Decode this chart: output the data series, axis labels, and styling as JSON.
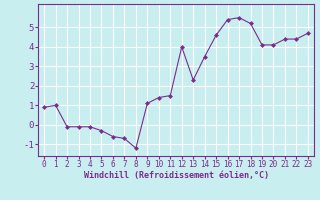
{
  "x": [
    0,
    1,
    2,
    3,
    4,
    5,
    6,
    7,
    8,
    9,
    10,
    11,
    12,
    13,
    14,
    15,
    16,
    17,
    18,
    19,
    20,
    21,
    22,
    23
  ],
  "y": [
    0.9,
    1.0,
    -0.1,
    -0.1,
    -0.1,
    -0.3,
    -0.6,
    -0.7,
    -1.2,
    1.1,
    1.4,
    1.5,
    4.0,
    2.3,
    3.5,
    4.6,
    5.4,
    5.5,
    5.2,
    4.1,
    4.1,
    4.4,
    4.4,
    4.7
  ],
  "line_color": "#7b2d8b",
  "marker": "D",
  "marker_size": 2.0,
  "line_width": 0.8,
  "bg_color": "#c8eef0",
  "grid_color": "#ffffff",
  "xlabel": "Windchill (Refroidissement éolien,°C)",
  "xlabel_color": "#7b2d8b",
  "xlabel_fontsize": 6.0,
  "tick_color": "#7b2d8b",
  "tick_fontsize": 5.5,
  "ytick_fontsize": 6.5,
  "ylim": [
    -1.6,
    6.2
  ],
  "xlim": [
    -0.5,
    23.5
  ],
  "yticks": [
    -1,
    0,
    1,
    2,
    3,
    4,
    5
  ],
  "xticks": [
    0,
    1,
    2,
    3,
    4,
    5,
    6,
    7,
    8,
    9,
    10,
    11,
    12,
    13,
    14,
    15,
    16,
    17,
    18,
    19,
    20,
    21,
    22,
    23
  ]
}
